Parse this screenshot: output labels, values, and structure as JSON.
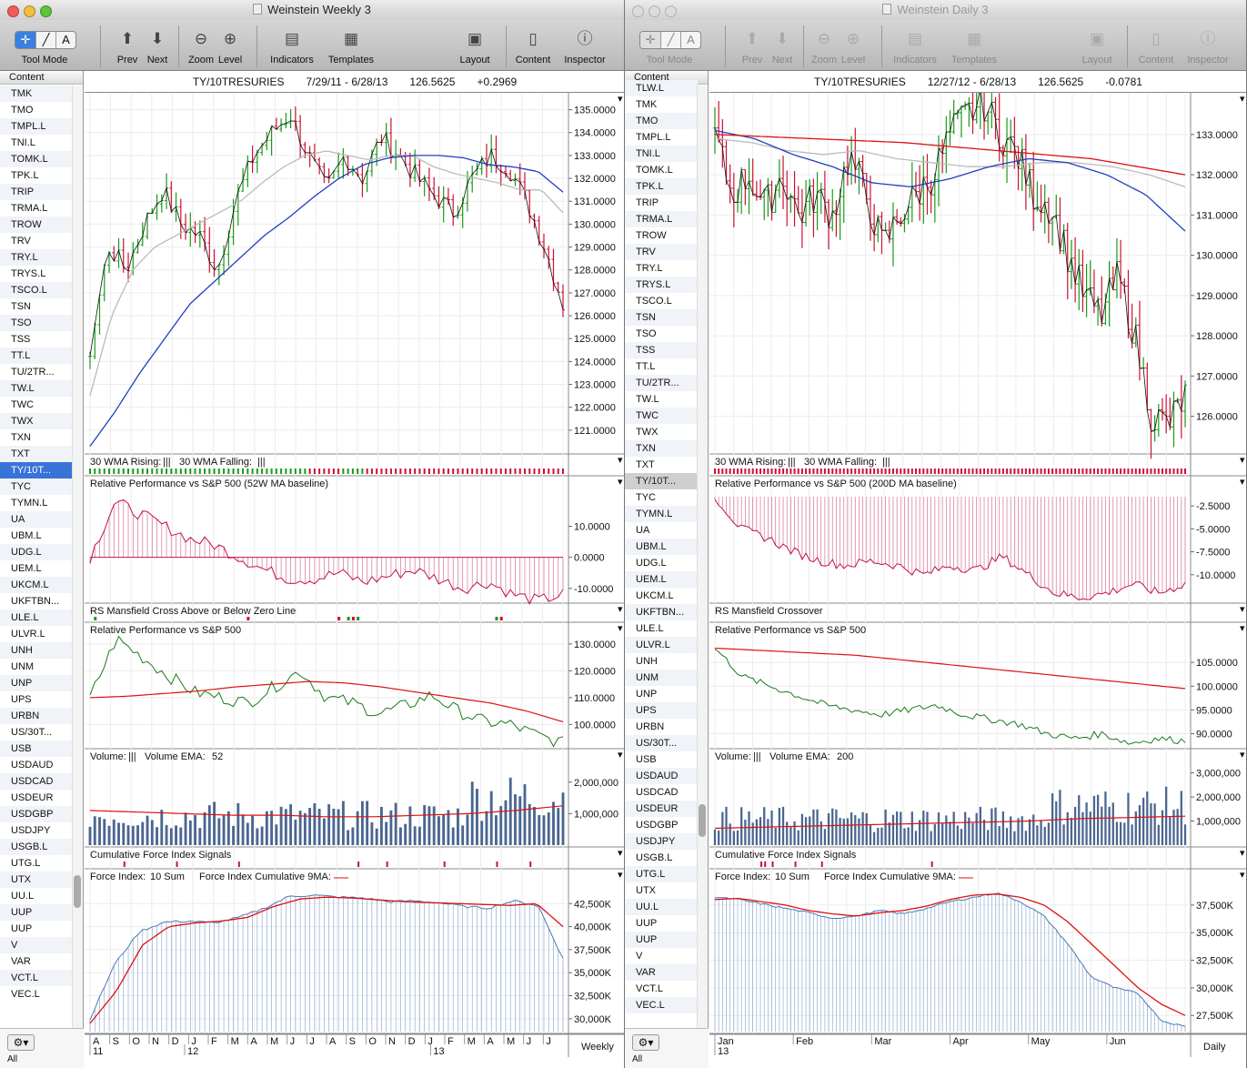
{
  "windows": [
    {
      "title": "Weinstein Weekly 3",
      "active": true,
      "symbol": "TY/10TRESURIES",
      "range": "7/29/11 - 6/28/13",
      "last": "126.5625",
      "change": "+0.2969",
      "price": {
        "ticks": [
          "135.0000",
          "134.0000",
          "133.0000",
          "132.0000",
          "131.0000",
          "130.0000",
          "129.0000",
          "128.0000",
          "127.0000",
          "126.0000",
          "125.0000",
          "124.0000",
          "123.0000",
          "122.0000",
          "121.0000"
        ],
        "min": 120.2,
        "max": 135.5
      },
      "panels": {
        "wma": {
          "label_rising": "30 WMA Rising:",
          "label_falling": "30 WMA Falling:",
          "rising_sym": "|||",
          "falling_sym": "|||"
        },
        "rp": {
          "label": "Relative Performance vs S&P 500 (52W MA baseline)",
          "ticks": [
            "10.0000",
            "0.0000",
            "-10.0000"
          ]
        },
        "rsm": {
          "label": "RS Mansfield Cross Above or Below Zero Line"
        },
        "rp2": {
          "label": "Relative Performance vs S&P 500",
          "ticks": [
            "130.0000",
            "120.0000",
            "110.0000",
            "100.0000"
          ]
        },
        "vol": {
          "label": "Volume:",
          "sym": "|||",
          "ema_label": "Volume EMA:",
          "ema_value": "52",
          "ticks": [
            "2,000,000",
            "1,000,000"
          ]
        },
        "cfs": {
          "label": "Cumulative Force Index Signals"
        },
        "fi": {
          "label": "Force Index:",
          "sum": "10 Sum",
          "cum_label": "Force Index Cumulative 9MA:",
          "ticks": [
            "42,500K",
            "40,000K",
            "37,500K",
            "35,000K",
            "32,500K",
            "30,000K"
          ]
        }
      },
      "xaxis": {
        "months": [
          "A",
          "S",
          "O",
          "N",
          "D",
          "J",
          "F",
          "M",
          "A",
          "M",
          "J",
          "J",
          "A",
          "S",
          "O",
          "N",
          "D",
          "J",
          "F",
          "M",
          "A",
          "M",
          "J",
          "J"
        ],
        "years": [
          "11",
          "12",
          "13"
        ],
        "period": "Weekly"
      },
      "sidebar_selected": "TY/10T..."
    },
    {
      "title": "Weinstein Daily 3",
      "active": false,
      "symbol": "TY/10TRESURIES",
      "range": "12/27/12 - 6/28/13",
      "last": "126.5625",
      "change": "-0.0781",
      "price": {
        "ticks": [
          "133.0000",
          "132.0000",
          "131.0000",
          "130.0000",
          "129.0000",
          "128.0000",
          "127.0000",
          "126.0000"
        ],
        "min": 125.2,
        "max": 133.9
      },
      "panels": {
        "wma": {
          "label_rising": "30 WMA Rising:",
          "label_falling": "30 WMA Falling:",
          "rising_sym": "|||",
          "falling_sym": "|||"
        },
        "rp": {
          "label": "Relative Performance vs S&P 500 (200D MA baseline)",
          "ticks": [
            "-2.5000",
            "-5.0000",
            "-7.5000",
            "-10.0000"
          ]
        },
        "rsm": {
          "label": "RS Mansfield Crossover"
        },
        "rp2": {
          "label": "Relative Performance vs S&P 500",
          "ticks": [
            "105.0000",
            "100.0000",
            "95.0000",
            "90.0000"
          ]
        },
        "vol": {
          "label": "Volume:",
          "sym": "|||",
          "ema_label": "Volume EMA:",
          "ema_value": "200",
          "ticks": [
            "3,000,000",
            "2,000,000",
            "1,000,000"
          ]
        },
        "cfs": {
          "label": "Cumulative Force Index Signals"
        },
        "fi": {
          "label": "Force Index:",
          "sum": "10 Sum",
          "cum_label": "Force Index Cumulative 9MA:",
          "ticks": [
            "37,500K",
            "35,000K",
            "32,500K",
            "30,000K",
            "27,500K"
          ]
        }
      },
      "xaxis": {
        "months": [
          "Jan",
          "Feb",
          "Mar",
          "Apr",
          "May",
          "Jun"
        ],
        "years": [
          "13"
        ],
        "period": "Daily"
      },
      "sidebar_selected": "TY/10T..."
    }
  ],
  "toolbar": {
    "tool_mode": "Tool Mode",
    "prev": "Prev",
    "next": "Next",
    "zoom": "Zoom",
    "level": "Level",
    "indicators": "Indicators",
    "templates": "Templates",
    "layout": "Layout",
    "content": "Content",
    "inspector": "Inspector"
  },
  "sidebar": {
    "header": "Content",
    "all": "All",
    "items": [
      "TMK",
      "TMO",
      "TMPL.L",
      "TNI.L",
      "TOMK.L",
      "TPK.L",
      "TRIP",
      "TRMA.L",
      "TROW",
      "TRV",
      "TRY.L",
      "TRYS.L",
      "TSCO.L",
      "TSN",
      "TSO",
      "TSS",
      "TT.L",
      "TU/2TR...",
      "TW.L",
      "TWC",
      "TWX",
      "TXN",
      "TXT",
      "TY/10T...",
      "TYC",
      "TYMN.L",
      "UA",
      "UBM.L",
      "UDG.L",
      "UEM.L",
      "UKCM.L",
      "UKFTBN...",
      "ULE.L",
      "ULVR.L",
      "UNH",
      "UNM",
      "UNP",
      "UPS",
      "URBN",
      "US/30T...",
      "USB",
      "USDAUD",
      "USDCAD",
      "USDEUR",
      "USDGBP",
      "USDJPY",
      "USGB.L",
      "UTG.L",
      "UTX",
      "UU.L",
      "UUP",
      "UUP",
      "V",
      "VAR",
      "VCT.L",
      "VEC.L"
    ],
    "w2_top_partial": "TLW.L"
  },
  "colors": {
    "up": "#1a9a1a",
    "down": "#cc1133",
    "ma_blue": "#1f3fbf",
    "ma_grey": "#bbbbbb",
    "ma_red": "#dd1111",
    "rp": "#c01050",
    "rp2": "#1a7a1a",
    "vol": "#4a6690",
    "fi": "#4a78b5",
    "accent": "#3874d8"
  }
}
